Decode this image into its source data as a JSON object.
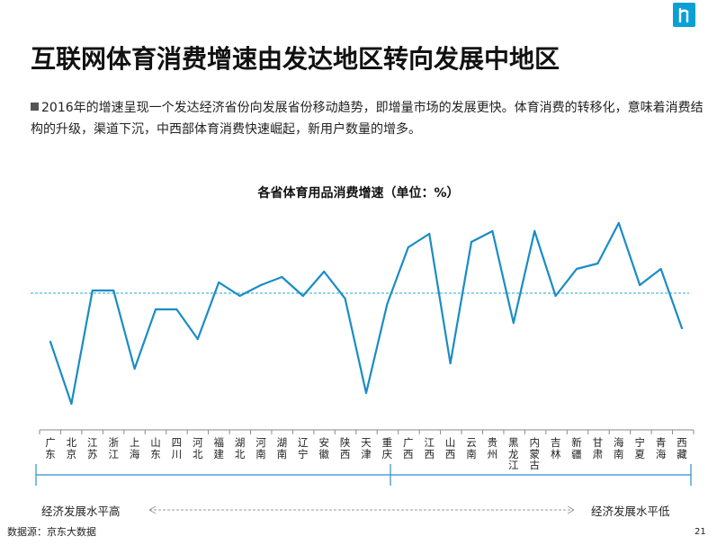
{
  "header": {
    "title": "互联网体育消费增速由发达地区转向发展中地区",
    "bullet": "2016年的增速呈现一个发达经济省份向发展省份移动趋势，即增量市场的发展更快。体育消费的转移化，意味着消费结构的升级，渠道下沉，中西部体育消费快速崛起，新用户数量的增多。"
  },
  "colors": {
    "line": "#1a8cc6",
    "reference": "#2aa9c9",
    "logo": "#0aa0d6"
  },
  "chart_data": {
    "type": "line",
    "title": "各省体育用品消费增速（单位：%）",
    "categories": [
      "广东",
      "北京",
      "江苏",
      "浙江",
      "上海",
      "山东",
      "四川",
      "河北",
      "福建",
      "湖北",
      "河南",
      "湖南",
      "辽宁",
      "安徽",
      "陕西",
      "天津",
      "重庆",
      "广西",
      "江西",
      "山西",
      "云南",
      "贵州",
      "黑龙江",
      "内蒙古",
      "吉林",
      "新疆",
      "甘肃",
      "海南",
      "宁夏",
      "青海",
      "西藏"
    ],
    "series": [
      {
        "values": [
          32,
          9,
          51,
          51,
          22,
          44,
          44,
          33,
          54,
          49,
          53,
          56,
          49,
          58,
          48,
          13,
          46,
          67,
          72,
          24,
          69,
          73,
          39,
          73,
          49,
          59,
          61,
          76,
          53,
          59,
          37
        ]
      }
    ],
    "reference_value": 50,
    "ylim": [
      0,
      82
    ],
    "grid": false,
    "legend": "none"
  },
  "regions": {
    "left_label": "经济发展水平高",
    "right_label": "经济发展水平低"
  },
  "footer": {
    "source": "数据源：京东大数据",
    "page": "21"
  }
}
